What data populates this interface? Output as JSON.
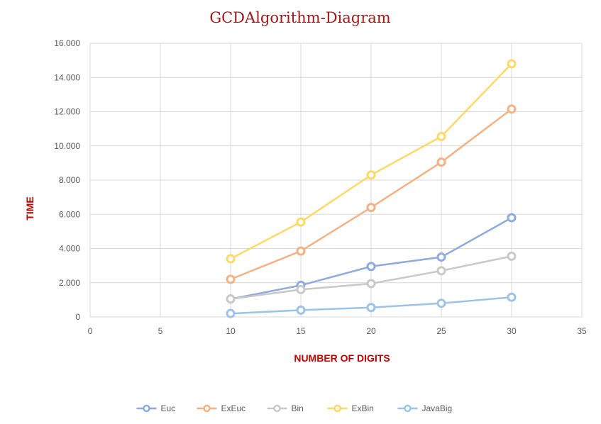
{
  "chart_data": {
    "type": "line",
    "title": "GCDAlgorithm-Diagram",
    "xlabel": "NUMBER OF DIGITS",
    "ylabel": "TIME",
    "xlim": [
      0,
      35
    ],
    "ylim": [
      0,
      16000
    ],
    "x_ticks": [
      "0",
      "5",
      "10",
      "15",
      "20",
      "25",
      "30",
      "35"
    ],
    "y_ticks": [
      "0",
      "2.000",
      "4.000",
      "6.000",
      "8.000",
      "10.000",
      "12.000",
      "14.000",
      "16.000"
    ],
    "grid": true,
    "legend_position": "bottom",
    "x": [
      10,
      15,
      20,
      25,
      30
    ],
    "series": [
      {
        "name": "Euc",
        "color": "#8faadc",
        "values": [
          1050,
          1850,
          2950,
          3500,
          5800
        ]
      },
      {
        "name": "ExEuc",
        "color": "#f4b183",
        "values": [
          2200,
          3850,
          6400,
          9050,
          12150
        ]
      },
      {
        "name": "Bin",
        "color": "#c9c9c9",
        "values": [
          1050,
          1600,
          1950,
          2700,
          3550
        ]
      },
      {
        "name": "ExBin",
        "color": "#ffd966",
        "values": [
          3400,
          5550,
          8300,
          10550,
          14800
        ]
      },
      {
        "name": "JavaBig",
        "color": "#9dc3e6",
        "values": [
          200,
          400,
          550,
          800,
          1150
        ]
      }
    ]
  }
}
